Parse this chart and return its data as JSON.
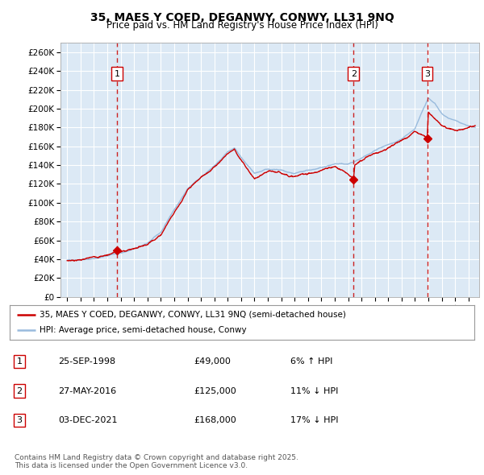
{
  "title": "35, MAES Y COED, DEGANWY, CONWY, LL31 9NQ",
  "subtitle": "Price paid vs. HM Land Registry's House Price Index (HPI)",
  "ylim": [
    0,
    270000
  ],
  "xlim_start": 1994.5,
  "xlim_end": 2025.8,
  "plot_bg_color": "#dce9f5",
  "grid_color": "#ffffff",
  "legend_label_property": "35, MAES Y COED, DEGANWY, CONWY, LL31 9NQ (semi-detached house)",
  "legend_label_hpi": "HPI: Average price, semi-detached house, Conwy",
  "sale_color": "#cc0000",
  "hpi_color": "#99bbdd",
  "dashed_line_color": "#cc2222",
  "annotation_box_color": "#cc0000",
  "transactions": [
    {
      "date_dec": 1998.73,
      "price": 49000,
      "label": "1"
    },
    {
      "date_dec": 2016.41,
      "price": 125000,
      "label": "2"
    },
    {
      "date_dec": 2021.92,
      "price": 168000,
      "label": "3"
    }
  ],
  "table_rows": [
    {
      "num": "1",
      "date": "25-SEP-1998",
      "price": "£49,000",
      "note": "6% ↑ HPI"
    },
    {
      "num": "2",
      "date": "27-MAY-2016",
      "price": "£125,000",
      "note": "11% ↓ HPI"
    },
    {
      "num": "3",
      "date": "03-DEC-2021",
      "price": "£168,000",
      "note": "17% ↓ HPI"
    }
  ],
  "footer": "Contains HM Land Registry data © Crown copyright and database right 2025.\nThis data is licensed under the Open Government Licence v3.0.",
  "yticks": [
    0,
    20000,
    40000,
    60000,
    80000,
    100000,
    120000,
    140000,
    160000,
    180000,
    200000,
    220000,
    240000,
    260000
  ],
  "ytick_labels": [
    "£0",
    "£20K",
    "£40K",
    "£60K",
    "£80K",
    "£100K",
    "£120K",
    "£140K",
    "£160K",
    "£180K",
    "£200K",
    "£220K",
    "£240K",
    "£260K"
  ]
}
